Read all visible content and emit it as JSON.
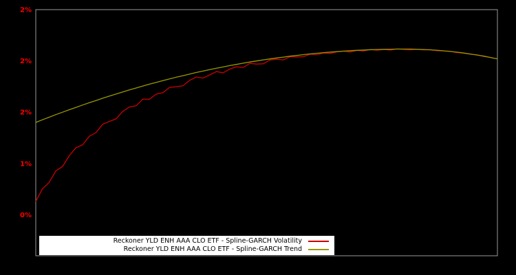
{
  "colors": {
    "background": "#000000",
    "plot_border": "#9a9a9a",
    "tick_label": "#ff0000",
    "volatility_line": "#cc0000",
    "trend_line": "#999900",
    "legend_bg": "#ffffff",
    "legend_text": "#000000"
  },
  "legend": {
    "entries": [
      {
        "label": "Reckoner YLD ENH AAA CLO ETF - Spline-GARCH Volatility",
        "series": "volatility"
      },
      {
        "label": "Reckoner YLD ENH AAA CLO ETF - Spline-GARCH Trend",
        "series": "trend"
      }
    ],
    "position": "lower center"
  },
  "chart_data": {
    "type": "line",
    "title": "",
    "xlabel": "",
    "ylabel": "",
    "grid": false,
    "ylim": [
      0.1,
      2.5
    ],
    "y_ticks": [
      {
        "value": 0.5,
        "label": "0%"
      },
      {
        "value": 1.0,
        "label": "1%"
      },
      {
        "value": 1.5,
        "label": "2%"
      },
      {
        "value": 2.0,
        "label": "2%"
      },
      {
        "value": 2.5,
        "label": "2%"
      }
    ],
    "x_tick_labels": [],
    "series": [
      {
        "key": "volatility",
        "name": "Reckoner YLD ENH AAA CLO ETF - Spline-GARCH Volatility",
        "color": "#cc0000",
        "values": [
          0.63,
          0.752,
          0.815,
          0.927,
          0.971,
          1.075,
          1.153,
          1.182,
          1.265,
          1.301,
          1.382,
          1.41,
          1.435,
          1.507,
          1.551,
          1.563,
          1.628,
          1.626,
          1.676,
          1.69,
          1.742,
          1.748,
          1.757,
          1.811,
          1.843,
          1.833,
          1.863,
          1.896,
          1.884,
          1.921,
          1.942,
          1.937,
          1.976,
          1.969,
          1.972,
          2.009,
          2.016,
          2.01,
          2.041,
          2.039,
          2.041,
          2.065,
          2.06,
          2.077,
          2.072,
          2.088,
          2.096,
          2.087,
          2.102,
          2.097,
          2.111,
          2.104,
          2.112,
          2.106,
          2.117,
          2.112,
          2.108,
          2.114,
          2.107,
          2.109,
          2.099,
          2.098,
          2.094,
          2.08,
          2.076,
          2.064,
          2.059,
          2.043,
          2.034,
          2.019
        ]
      },
      {
        "key": "trend",
        "name": "Reckoner YLD ENH AAA CLO ETF - Spline-GARCH Trend",
        "color": "#999900",
        "values": [
          1.4,
          1.426,
          1.451,
          1.476,
          1.5,
          1.524,
          1.547,
          1.57,
          1.592,
          1.614,
          1.636,
          1.657,
          1.677,
          1.697,
          1.717,
          1.736,
          1.755,
          1.773,
          1.79,
          1.808,
          1.824,
          1.841,
          1.856,
          1.872,
          1.887,
          1.901,
          1.915,
          1.928,
          1.941,
          1.954,
          1.966,
          1.978,
          1.989,
          1.999,
          2.01,
          2.019,
          2.029,
          2.037,
          2.046,
          2.053,
          2.061,
          2.068,
          2.074,
          2.08,
          2.086,
          2.091,
          2.095,
          2.099,
          2.103,
          2.106,
          2.109,
          2.111,
          2.113,
          2.114,
          2.115,
          2.115,
          2.115,
          2.113,
          2.111,
          2.108,
          2.104,
          2.098,
          2.092,
          2.085,
          2.076,
          2.067,
          2.057,
          2.046,
          2.033,
          2.02
        ]
      }
    ]
  }
}
